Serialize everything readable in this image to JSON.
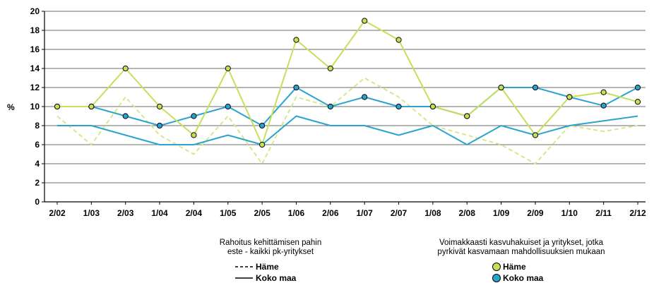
{
  "chart_data": {
    "type": "line",
    "categories": [
      "2/02",
      "1/03",
      "2/03",
      "1/04",
      "2/04",
      "1/05",
      "2/05",
      "1/06",
      "2/06",
      "1/07",
      "2/07",
      "1/08",
      "2/08",
      "1/09",
      "2/09",
      "1/10",
      "2/11",
      "2/12"
    ],
    "ylabel": "%",
    "ylim": [
      0,
      20
    ],
    "yticks": [
      0,
      2,
      4,
      6,
      8,
      10,
      12,
      14,
      16,
      18,
      20
    ],
    "grid": true,
    "legend_position": "bottom",
    "series": [
      {
        "name": "Häme",
        "group": "Voimakkaasti kasvuhakuiset ja yritykset, jotka pyrkivät kasvamaan mahdollisuuksien mukaan",
        "style": "solid-markers",
        "color": "#c6df5a",
        "values": [
          10,
          10,
          14,
          10,
          7,
          14,
          6,
          17,
          14,
          19,
          17,
          10,
          9,
          12,
          7,
          11,
          11.5,
          10.5
        ]
      },
      {
        "name": "Koko maa",
        "group": "Voimakkaasti kasvuhakuiset ja yritykset, jotka pyrkivät kasvamaan mahdollisuuksien mukaan",
        "style": "solid-markers",
        "color": "#2ba3cf",
        "values": [
          10,
          10,
          9,
          8,
          9,
          10,
          8,
          12,
          10,
          11,
          10,
          10,
          9,
          12,
          12,
          11,
          10.1,
          12
        ]
      },
      {
        "name": "Häme",
        "group": "Rahoitus kehittämisen pahin este - kaikki pk-yritykset",
        "style": "dashed",
        "color": "#d4e88c",
        "values": [
          9,
          6,
          11,
          7,
          5,
          9,
          4,
          11,
          10,
          13,
          11,
          8,
          7,
          6,
          4,
          8,
          7.4,
          8
        ]
      },
      {
        "name": "Koko maa",
        "group": "Rahoitus kehittämisen pahin este - kaikki pk-yritykset",
        "style": "solid",
        "color": "#2ba3cf",
        "values": [
          8,
          8,
          7,
          6,
          6,
          7,
          6,
          9,
          8,
          8,
          7,
          8,
          6,
          8,
          7,
          8,
          8.5,
          9
        ]
      }
    ],
    "legend": {
      "group1_title_line1": "Rahoitus kehittämisen pahin",
      "group1_title_line2": "este - kaikki pk-yritykset",
      "group1_item1": "Häme",
      "group1_item2": "Koko maa",
      "group2_title_line1": "Voimakkaasti kasvuhakuiset ja yritykset, jotka",
      "group2_title_line2": "pyrkivät kasvamaan mahdollisuuksien mukaan",
      "group2_item1": "Häme",
      "group2_item2": "Koko maa"
    }
  }
}
